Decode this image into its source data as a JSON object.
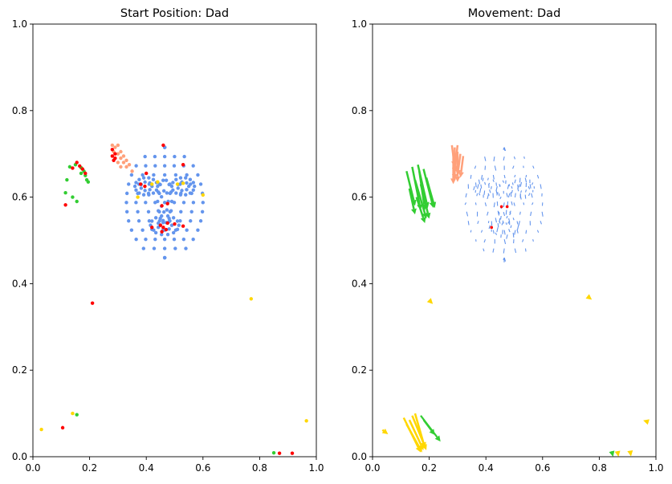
{
  "chart_data": [
    {
      "type": "scatter",
      "title": "Start Position: Dad",
      "xlabel": "",
      "ylabel": "",
      "xlim": [
        0,
        1
      ],
      "ylim": [
        0,
        1
      ],
      "xticks": [
        "0.0",
        "0.2",
        "0.4",
        "0.6",
        "0.8",
        "1.0"
      ],
      "yticks": [
        "0.0",
        "0.2",
        "0.4",
        "0.6",
        "0.8",
        "1.0"
      ],
      "grid": false,
      "colors": {
        "face": "#6495ed",
        "hand": "#32cd32",
        "hair": "#ffa07a",
        "keypoint": "#ff0000",
        "accent": "#ffd700"
      },
      "face_mesh": {
        "center": [
          0.465,
          0.585
        ],
        "rx": 0.135,
        "ry": 0.125,
        "top": 0.715,
        "bottom": 0.46
      },
      "hair_points": [
        [
          0.28,
          0.72
        ],
        [
          0.29,
          0.715
        ],
        [
          0.3,
          0.72
        ],
        [
          0.285,
          0.705
        ],
        [
          0.3,
          0.7
        ],
        [
          0.31,
          0.705
        ],
        [
          0.29,
          0.69
        ],
        [
          0.31,
          0.69
        ],
        [
          0.32,
          0.695
        ],
        [
          0.3,
          0.68
        ],
        [
          0.32,
          0.68
        ],
        [
          0.33,
          0.685
        ],
        [
          0.31,
          0.67
        ],
        [
          0.33,
          0.67
        ],
        [
          0.34,
          0.675
        ],
        [
          0.35,
          0.66
        ]
      ],
      "hand_points": [
        [
          0.12,
          0.64
        ],
        [
          0.115,
          0.61
        ],
        [
          0.14,
          0.6
        ],
        [
          0.155,
          0.59
        ],
        [
          0.13,
          0.67
        ],
        [
          0.15,
          0.675
        ],
        [
          0.17,
          0.668
        ],
        [
          0.18,
          0.66
        ],
        [
          0.185,
          0.65
        ],
        [
          0.19,
          0.64
        ],
        [
          0.195,
          0.635
        ],
        [
          0.17,
          0.655
        ]
      ],
      "keypoints": [
        [
          0.28,
          0.71
        ],
        [
          0.29,
          0.7
        ],
        [
          0.28,
          0.695
        ],
        [
          0.29,
          0.69
        ],
        [
          0.285,
          0.685
        ],
        [
          0.14,
          0.667
        ],
        [
          0.155,
          0.68
        ],
        [
          0.165,
          0.672
        ],
        [
          0.175,
          0.665
        ],
        [
          0.185,
          0.655
        ],
        [
          0.115,
          0.582
        ],
        [
          0.46,
          0.72
        ],
        [
          0.4,
          0.655
        ],
        [
          0.53,
          0.675
        ],
        [
          0.38,
          0.63
        ],
        [
          0.395,
          0.625
        ],
        [
          0.455,
          0.58
        ],
        [
          0.475,
          0.585
        ],
        [
          0.42,
          0.53
        ],
        [
          0.45,
          0.535
        ],
        [
          0.475,
          0.54
        ],
        [
          0.5,
          0.538
        ],
        [
          0.53,
          0.533
        ],
        [
          0.455,
          0.52
        ],
        [
          0.47,
          0.525
        ],
        [
          0.46,
          0.53
        ],
        [
          0.21,
          0.355
        ],
        [
          0.105,
          0.067
        ],
        [
          0.87,
          0.008
        ],
        [
          0.915,
          0.008
        ]
      ],
      "accent_points": [
        [
          0.42,
          0.63
        ],
        [
          0.44,
          0.635
        ],
        [
          0.51,
          0.63
        ],
        [
          0.53,
          0.632
        ],
        [
          0.37,
          0.6
        ],
        [
          0.6,
          0.605
        ],
        [
          0.77,
          0.365
        ],
        [
          0.03,
          0.063
        ],
        [
          0.14,
          0.1
        ],
        [
          0.965,
          0.083
        ]
      ],
      "other_hand_points": [
        [
          0.155,
          0.097
        ],
        [
          0.85,
          0.009
        ]
      ]
    },
    {
      "type": "quiver",
      "title": "Movement: Dad",
      "xlabel": "",
      "ylabel": "",
      "xlim": [
        0,
        1
      ],
      "ylim": [
        0,
        1
      ],
      "xticks": [
        "0.0",
        "0.2",
        "0.4",
        "0.6",
        "0.8",
        "1.0"
      ],
      "yticks": [
        "0.0",
        "0.2",
        "0.4",
        "0.6",
        "0.8",
        "1.0"
      ],
      "grid": false,
      "hand_arrows": [
        [
          0.12,
          0.66,
          0.03,
          -0.08
        ],
        [
          0.14,
          0.67,
          0.03,
          -0.1
        ],
        [
          0.16,
          0.675,
          0.035,
          -0.1
        ],
        [
          0.18,
          0.665,
          0.035,
          -0.09
        ],
        [
          0.19,
          0.645,
          0.03,
          -0.07
        ],
        [
          0.15,
          0.64,
          0.04,
          -0.09
        ],
        [
          0.13,
          0.62,
          0.02,
          -0.06
        ],
        [
          0.17,
          0.63,
          0.03,
          -0.08
        ],
        [
          0.155,
          0.6,
          0.03,
          -0.06
        ],
        [
          0.165,
          0.66,
          0.02,
          -0.09
        ]
      ],
      "hair_arrows": [
        [
          0.28,
          0.72,
          0.01,
          -0.05
        ],
        [
          0.29,
          0.715,
          0.0,
          -0.06
        ],
        [
          0.3,
          0.72,
          -0.01,
          -0.06
        ],
        [
          0.285,
          0.7,
          0.0,
          -0.07
        ],
        [
          0.3,
          0.705,
          0.0,
          -0.07
        ],
        [
          0.31,
          0.7,
          -0.01,
          -0.05
        ],
        [
          0.29,
          0.69,
          0.0,
          -0.05
        ],
        [
          0.32,
          0.695,
          -0.01,
          -0.05
        ]
      ],
      "bottom_arrows": [
        [
          0.11,
          0.09,
          0.06,
          -0.08
        ],
        [
          0.13,
          0.085,
          0.05,
          -0.07
        ],
        [
          0.14,
          0.095,
          0.05,
          -0.08
        ],
        [
          0.15,
          0.1,
          0.035,
          -0.08
        ],
        [
          0.12,
          0.075,
          0.055,
          -0.065
        ],
        [
          0.035,
          0.062,
          0.02,
          -0.01
        ]
      ],
      "bottom_hand_arrows": [
        [
          0.17,
          0.095,
          0.07,
          -0.06
        ],
        [
          0.18,
          0.085,
          0.04,
          -0.035
        ],
        [
          0.845,
          0.01,
          0.004,
          -0.01
        ]
      ],
      "accent_arrows": [
        [
          0.865,
          0.01,
          0.003,
          -0.01
        ],
        [
          0.91,
          0.009,
          0.002,
          -0.008
        ],
        [
          0.96,
          0.083,
          -0.005,
          0.001
        ],
        [
          0.77,
          0.365,
          0.004,
          -0.002
        ],
        [
          0.21,
          0.355,
          0.003,
          -0.002
        ]
      ],
      "keypoints": [
        [
          0.455,
          0.578
        ],
        [
          0.475,
          0.578
        ],
        [
          0.42,
          0.53
        ]
      ]
    }
  ]
}
